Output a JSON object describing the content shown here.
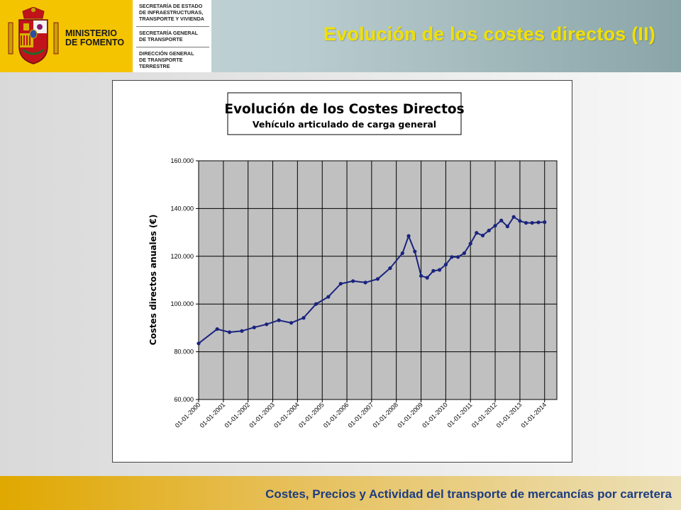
{
  "header": {
    "ministry_line1": "MINISTERIO",
    "ministry_line2": "DE FOMENTO",
    "secretariats": [
      [
        "SECRETARÍA DE ESTADO",
        "DE INFRAESTRUCTURAS,",
        "TRANSPORTE Y VIVIENDA"
      ],
      [
        "SECRETARÍA GENERAL",
        "DE TRANSPORTE"
      ],
      [
        "DIRECCIÓN GENERAL",
        "DE TRANSPORTE",
        "TERRESTRE"
      ]
    ],
    "slide_title": "Evolución de los costes directos (II)"
  },
  "footer": {
    "text": "Costes, Precios y Actividad del transporte de mercancías por carretera"
  },
  "colors": {
    "header_yellow": "#f5c400",
    "title_yellow": "#f0e000",
    "footer_text": "#1e3c80",
    "plot_background": "#c0c0c0",
    "series_color": "#1a237e"
  },
  "chart_data": {
    "type": "line",
    "title": "Evolución de los Costes Directos",
    "subtitle": "Vehículo articulado de carga general",
    "xlabel": "",
    "ylabel": "Costes directos anuales (€)",
    "ylim": [
      60000,
      160000
    ],
    "yticks": [
      "60.000",
      "80.000",
      "100.000",
      "120.000",
      "140.000",
      "160.000"
    ],
    "x_tick_labels": [
      "01-01-2000",
      "01-01-2001",
      "01-01-2002",
      "01-01-2003",
      "01-01-2004",
      "01-01-2005",
      "01-01-2006",
      "01-01-2007",
      "01-01-2008",
      "01-01-2009",
      "01-01-2010",
      "01-01-2011",
      "01-01-2012",
      "01-01-2013",
      "01-01-2014"
    ],
    "xlim": [
      "2000-01-01",
      "2014-07-01"
    ],
    "grid": true,
    "series": [
      {
        "x": [
          "2000-01-01",
          "2000-10-01",
          "2001-04-01",
          "2001-10-01",
          "2002-04-01",
          "2002-10-01",
          "2003-04-01",
          "2003-10-01",
          "2004-04-01",
          "2004-10-01",
          "2005-04-01",
          "2005-10-01",
          "2006-04-01",
          "2006-10-01",
          "2007-04-01",
          "2007-10-01",
          "2008-04-01",
          "2008-07-01",
          "2008-10-01",
          "2009-01-01",
          "2009-04-01",
          "2009-07-01",
          "2009-10-01",
          "2010-01-01",
          "2010-04-01",
          "2010-07-01",
          "2010-10-01",
          "2011-01-01",
          "2011-04-01",
          "2011-07-01",
          "2011-10-01",
          "2012-01-01",
          "2012-04-01",
          "2012-07-01",
          "2012-10-01",
          "2013-01-01",
          "2013-04-01",
          "2013-07-01",
          "2013-10-01",
          "2014-01-01"
        ],
        "values": [
          83500,
          89500,
          88200,
          88700,
          90200,
          91500,
          93200,
          92100,
          94200,
          100000,
          103000,
          108500,
          109600,
          109000,
          110500,
          115000,
          121300,
          128500,
          122000,
          111800,
          111000,
          113900,
          114300,
          116500,
          119700,
          119700,
          121300,
          125300,
          129800,
          128700,
          130800,
          132800,
          135000,
          132500,
          136500,
          134800,
          134000,
          134000,
          134200,
          134300
        ]
      }
    ]
  }
}
